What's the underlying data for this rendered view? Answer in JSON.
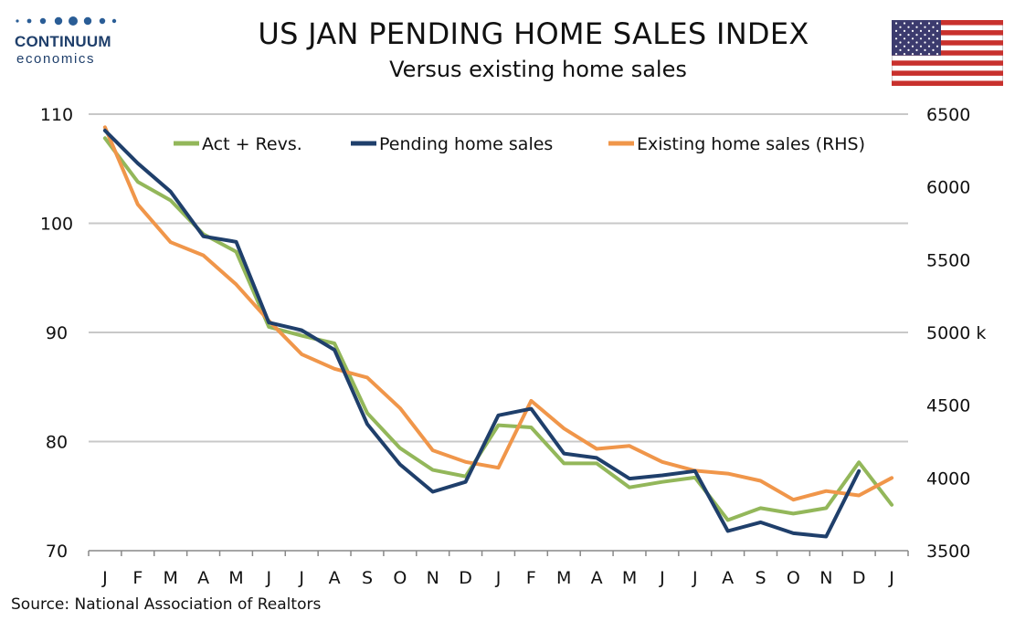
{
  "header": {
    "title": "US JAN PENDING HOME SALES INDEX",
    "subtitle": "Versus existing home sales"
  },
  "logo": {
    "word": "CONTINUUM",
    "sub": "economics"
  },
  "source": "Source: National Association of Realtors",
  "flag": {
    "name": "us-flag-icon",
    "blue": "#3c3b6e",
    "red": "#c8312d"
  },
  "colors": {
    "act_revs": "#93b75a",
    "pending": "#1f3f6b",
    "existing": "#f0964a",
    "grid": "#c8c8c8"
  },
  "chart_data": {
    "type": "line",
    "title": "US JAN PENDING HOME SALES INDEX",
    "subtitle": "Versus existing home sales",
    "categories": [
      "J",
      "F",
      "M",
      "A",
      "M",
      "J",
      "J",
      "A",
      "S",
      "O",
      "N",
      "D",
      "J",
      "F",
      "M",
      "A",
      "M",
      "J",
      "J",
      "A",
      "S",
      "O",
      "N",
      "D",
      "J"
    ],
    "y_left": {
      "min": 70,
      "max": 110,
      "ticks": [
        70,
        80,
        90,
        100,
        110
      ]
    },
    "y_right": {
      "min": 3500,
      "max": 6500,
      "ticks": [
        3500,
        4000,
        4500,
        5000,
        5500,
        6000,
        6500
      ],
      "tick_labels": [
        "3500",
        "4000",
        "4500",
        "5000 k",
        "5500",
        "6000",
        "6500"
      ]
    },
    "grid": true,
    "legend_position": "top",
    "series": [
      {
        "name": "Act + Revs.",
        "axis": "left",
        "values": [
          107.8,
          103.8,
          102.1,
          99.0,
          97.4,
          90.5,
          89.7,
          89.0,
          82.6,
          79.4,
          77.4,
          76.8,
          81.5,
          81.3,
          78.0,
          78.0,
          75.8,
          76.3,
          76.7,
          72.8,
          73.9,
          73.4,
          73.9,
          78.1,
          74.2
        ]
      },
      {
        "name": "Pending home sales",
        "axis": "left",
        "values": [
          108.5,
          105.5,
          102.9,
          98.8,
          98.3,
          90.9,
          90.2,
          88.4,
          81.6,
          77.9,
          75.4,
          76.3,
          82.4,
          83.0,
          78.9,
          78.5,
          76.6,
          76.9,
          77.3,
          71.8,
          72.6,
          71.6,
          71.3,
          77.3,
          null
        ]
      },
      {
        "name": "Existing home sales (RHS)",
        "axis": "right",
        "values": [
          6410,
          5880,
          5620,
          5530,
          5330,
          5080,
          4850,
          4750,
          4690,
          4480,
          4190,
          4110,
          4070,
          4530,
          4340,
          4200,
          4220,
          4110,
          4050,
          4030,
          3980,
          3850,
          3910,
          3880,
          4000
        ]
      }
    ]
  }
}
